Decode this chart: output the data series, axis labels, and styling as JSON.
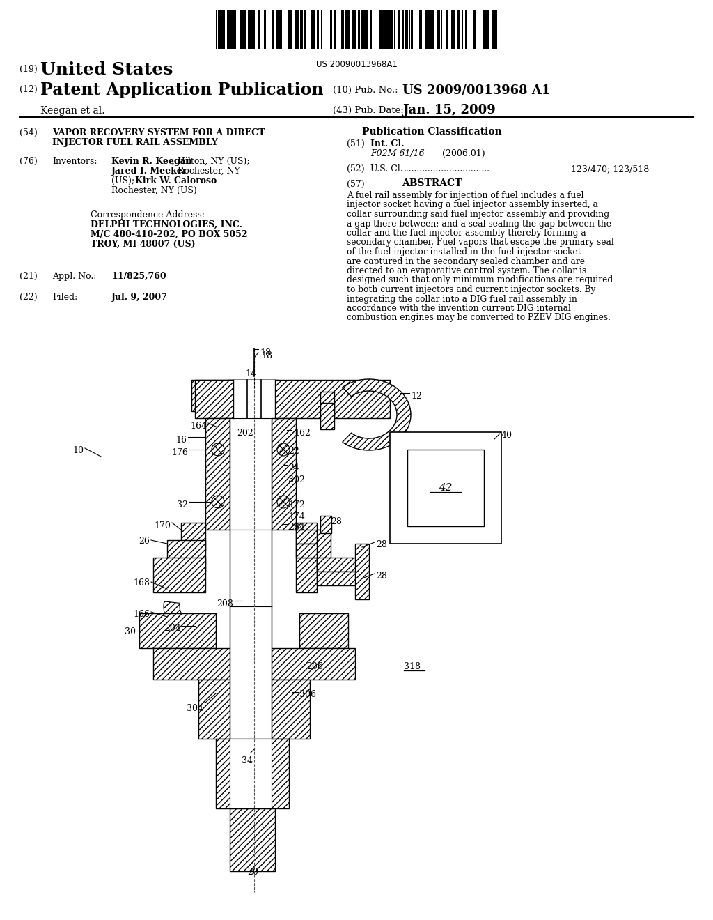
{
  "background_color": "#ffffff",
  "barcode_text": "US 20090013968A1",
  "header": {
    "country_num": "(19)",
    "country": "United States",
    "type_num": "(12)",
    "type": "Patent Application Publication",
    "pub_num_label": "(10) Pub. No.:",
    "pub_num": "US 2009/0013968 A1",
    "applicant": "Keegan et al.",
    "date_label": "(43) Pub. Date:",
    "date": "Jan. 15, 2009"
  },
  "left_column": {
    "title_num": "(54)",
    "title_line1": "VAPOR RECOVERY SYSTEM FOR A DIRECT",
    "title_line2": "INJECTOR FUEL RAIL ASSEMBLY",
    "inventors_num": "(76)",
    "inventors_label": "Inventors:",
    "corr_label": "Correspondence Address:",
    "corr_name": "DELPHI TECHNOLOGIES, INC.",
    "corr_addr1": "M/C 480-410-202, PO BOX 5052",
    "corr_addr2": "TROY, MI 48007 (US)",
    "appl_num": "(21)",
    "appl_label": "Appl. No.:",
    "appl_val": "11/825,760",
    "filed_num": "(22)",
    "filed_label": "Filed:",
    "filed_val": "Jul. 9, 2007"
  },
  "right_column": {
    "pub_class_title": "Publication Classification",
    "int_cl_num": "(51)",
    "int_cl_label": "Int. Cl.",
    "int_cl_val": "F02M 61/16",
    "int_cl_year": "(2006.01)",
    "us_cl_num": "(52)",
    "us_cl_label": "U.S. Cl.",
    "us_cl_dots": "................................",
    "us_cl_val": "123/470; 123/518",
    "abstract_num": "(57)",
    "abstract_title": "ABSTRACT",
    "abstract_text": "A fuel rail assembly for injection of fuel includes a fuel injector socket having a fuel injector assembly inserted, a collar surrounding said fuel injector assembly and providing a gap there between; and a seal sealing the gap between the collar and the fuel injector assembly thereby forming a secondary chamber. Fuel vapors that escape the primary seal of the fuel injector installed in the fuel injector socket are captured in the secondary sealed chamber and are directed to an evaporative control system. The collar is designed such that only minimum modifications are required to both current injectors and current injector sockets. By integrating the collar into a DIG fuel rail assembly in accordance with the invention current DIG internal combustion engines may be converted to PZEV DIG engines."
  }
}
